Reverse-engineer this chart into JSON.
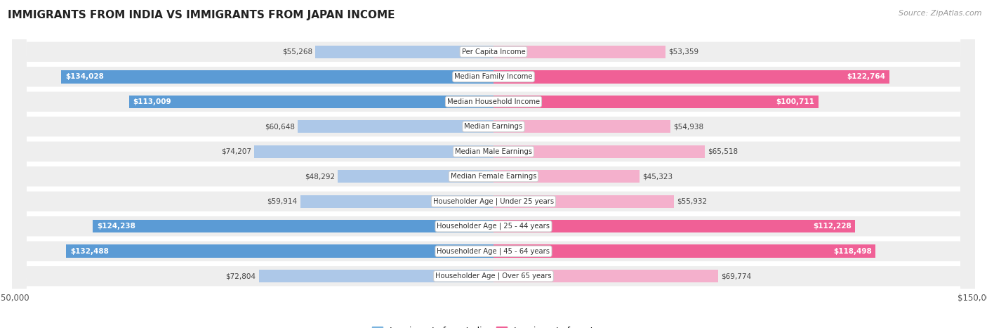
{
  "title": "IMMIGRANTS FROM INDIA VS IMMIGRANTS FROM JAPAN INCOME",
  "source": "Source: ZipAtlas.com",
  "categories": [
    "Per Capita Income",
    "Median Family Income",
    "Median Household Income",
    "Median Earnings",
    "Median Male Earnings",
    "Median Female Earnings",
    "Householder Age | Under 25 years",
    "Householder Age | 25 - 44 years",
    "Householder Age | 45 - 64 years",
    "Householder Age | Over 65 years"
  ],
  "india_values": [
    55268,
    134028,
    113009,
    60648,
    74207,
    48292,
    59914,
    124238,
    132488,
    72804
  ],
  "japan_values": [
    53359,
    122764,
    100711,
    54938,
    65518,
    45323,
    55932,
    112228,
    118498,
    69774
  ],
  "india_labels": [
    "$55,268",
    "$134,028",
    "$113,009",
    "$60,648",
    "$74,207",
    "$48,292",
    "$59,914",
    "$124,238",
    "$132,488",
    "$72,804"
  ],
  "japan_labels": [
    "$53,359",
    "$122,764",
    "$100,711",
    "$54,938",
    "$65,518",
    "$45,323",
    "$55,932",
    "$112,228",
    "$118,498",
    "$69,774"
  ],
  "india_color_light": "#adc8e8",
  "india_color_dark": "#5b9bd5",
  "japan_color_light": "#f4b0cc",
  "japan_color_dark": "#f06096",
  "max_value": 150000,
  "bar_height": 0.52,
  "row_bg_light": "#f0f0f0",
  "row_bg_dark": "#e8e8e8",
  "label_inside_threshold": 95000,
  "india_legend": "Immigrants from India",
  "japan_legend": "Immigrants from Japan",
  "background_color": "#ffffff",
  "legend_india_color": "#7ab3de",
  "legend_japan_color": "#f06096"
}
